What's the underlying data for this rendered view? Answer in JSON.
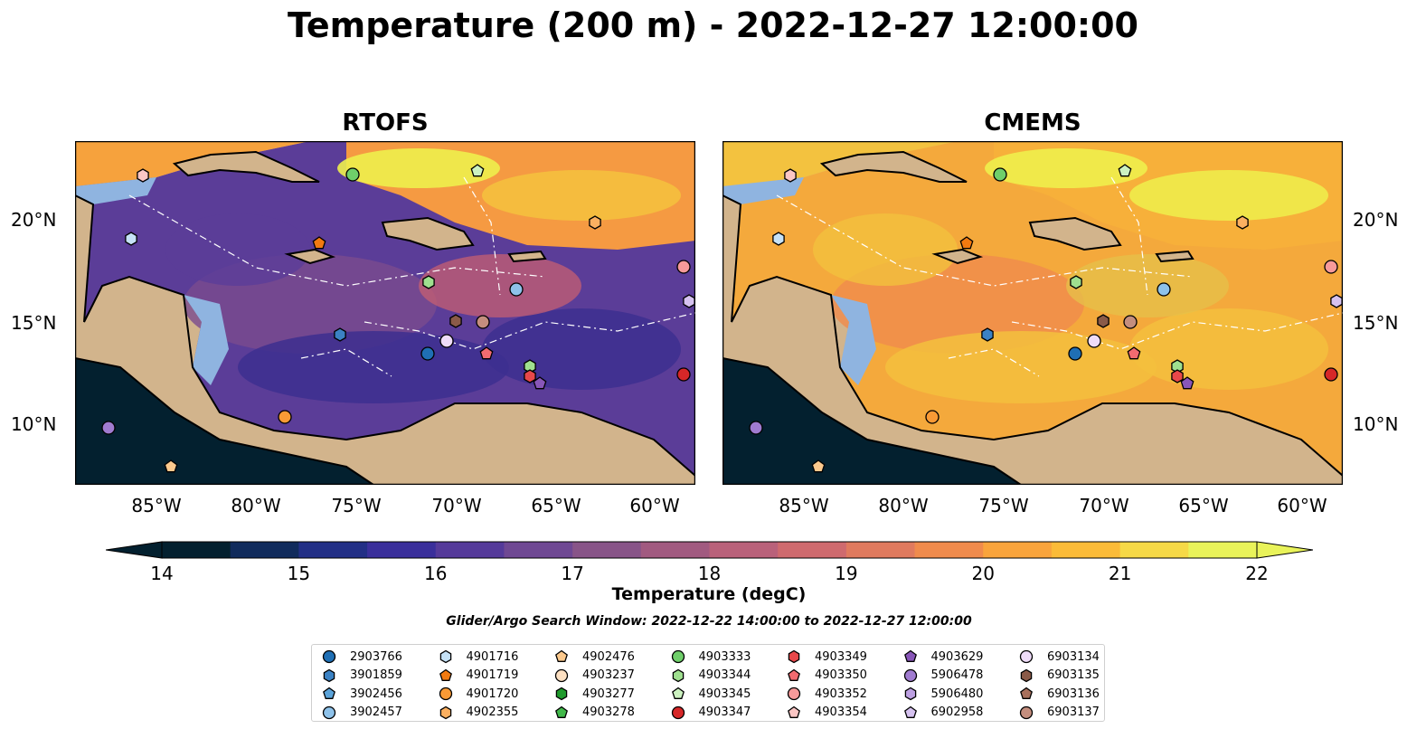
{
  "title": "Temperature (200 m) - 2022-12-27 12:00:00",
  "panels": [
    {
      "name": "RTOFS"
    },
    {
      "name": "CMEMS"
    }
  ],
  "lat_labels": [
    "20°N",
    "15°N",
    "10°N"
  ],
  "lon_labels": [
    "85°W",
    "80°W",
    "75°W",
    "70°W",
    "65°W",
    "60°W"
  ],
  "colorbar": {
    "label": "Temperature (degC)",
    "ticks": [
      "14",
      "15",
      "16",
      "17",
      "18",
      "19",
      "20",
      "21",
      "22"
    ],
    "colors": [
      "#03202f",
      "#102b5c",
      "#222f86",
      "#3a2f9b",
      "#553a9a",
      "#6f4893",
      "#885488",
      "#a15a80",
      "#b9617a",
      "#cf6a6e",
      "#e07a5e",
      "#f08b4c",
      "#f9a43c",
      "#fbbb38",
      "#f6d947",
      "#e9f35a"
    ]
  },
  "search_window": "Glider/Argo Search Window: 2022-12-22 14:00:00 to 2022-12-27 12:00:00",
  "legend": [
    {
      "id": "2903766",
      "marker": "circle",
      "color": "#1f6fb4"
    },
    {
      "id": "3901859",
      "marker": "hexagon",
      "color": "#3b82c4"
    },
    {
      "id": "3902456",
      "marker": "pentagon",
      "color": "#5ba3d9"
    },
    {
      "id": "3902457",
      "marker": "circle",
      "color": "#8ec2ea"
    },
    {
      "id": "4901716",
      "marker": "hexagon",
      "color": "#c6e2f7"
    },
    {
      "id": "4901719",
      "marker": "pentagon",
      "color": "#f27a10"
    },
    {
      "id": "4901720",
      "marker": "circle",
      "color": "#f99a35"
    },
    {
      "id": "4902355",
      "marker": "hexagon",
      "color": "#fbb061"
    },
    {
      "id": "4902476",
      "marker": "pentagon",
      "color": "#fcc98d"
    },
    {
      "id": "4903237",
      "marker": "circle",
      "color": "#fde0c2"
    },
    {
      "id": "4903277",
      "marker": "hexagon",
      "color": "#1f9a2c"
    },
    {
      "id": "4903278",
      "marker": "pentagon",
      "color": "#41b84a"
    },
    {
      "id": "4903333",
      "marker": "circle",
      "color": "#6fcf6a"
    },
    {
      "id": "4903344",
      "marker": "hexagon",
      "color": "#9fe08f"
    },
    {
      "id": "4903345",
      "marker": "pentagon",
      "color": "#ccf2c0"
    },
    {
      "id": "4903347",
      "marker": "circle",
      "color": "#d62728"
    },
    {
      "id": "4903349",
      "marker": "hexagon",
      "color": "#e8484a"
    },
    {
      "id": "4903350",
      "marker": "pentagon",
      "color": "#f26b70"
    },
    {
      "id": "4903352",
      "marker": "circle",
      "color": "#f79a9a"
    },
    {
      "id": "4903354",
      "marker": "pentagon",
      "color": "#fbc6c4"
    },
    {
      "id": "4903629",
      "marker": "pentagon",
      "color": "#8856b8"
    },
    {
      "id": "5906478",
      "marker": "circle",
      "color": "#a07bd0"
    },
    {
      "id": "5906480",
      "marker": "hexagon",
      "color": "#bda0e2"
    },
    {
      "id": "6902958",
      "marker": "pentagon",
      "color": "#d6c2f0"
    },
    {
      "id": "6903134",
      "marker": "circle",
      "color": "#efdcf9"
    },
    {
      "id": "6903135",
      "marker": "hexagon",
      "color": "#8a5a48"
    },
    {
      "id": "6903136",
      "marker": "pentagon",
      "color": "#a8705c"
    },
    {
      "id": "6903137",
      "marker": "circle",
      "color": "#c48e7e"
    }
  ]
}
